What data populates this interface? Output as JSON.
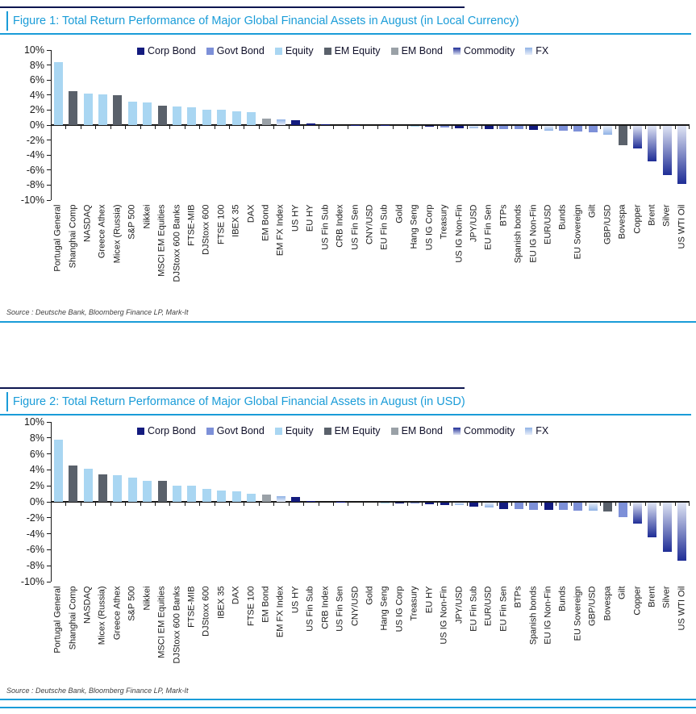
{
  "palette": {
    "corp_bond": {
      "label": "Corp Bond",
      "type": "solid",
      "color": "#131b7e"
    },
    "govt_bond": {
      "label": "Govt Bond",
      "type": "solid",
      "color": "#7d90d8"
    },
    "equity": {
      "label": "Equity",
      "type": "solid",
      "color": "#a9d6f2"
    },
    "em_equity": {
      "label": "EM Equity",
      "type": "solid",
      "color": "#5a616b"
    },
    "em_bond": {
      "label": "EM Bond",
      "type": "solid",
      "color": "#9aa1a7"
    },
    "commodity": {
      "label": "Commodity",
      "type": "gradient",
      "from": "#dfe4f4",
      "to": "#1f2d96"
    },
    "fx": {
      "label": "FX",
      "type": "gradient",
      "from": "#e8eef9",
      "to": "#8fb2e5"
    }
  },
  "chart_data": [
    {
      "type": "bar",
      "title": "Figure 1: Total Return Performance of Major Global Financial Assets in August (in Local Currency)",
      "source": "Source : Deutsche Bank, Bloomberg Finance LP, Mark-It",
      "xlabel": "",
      "ylabel": "",
      "ylim": [
        -10,
        10
      ],
      "yticks": [
        10,
        8,
        6,
        4,
        2,
        0,
        -2,
        -4,
        -6,
        -8,
        -10
      ],
      "ytick_format": "percent",
      "grid": false,
      "legend_position": "top",
      "legend": [
        "corp_bond",
        "govt_bond",
        "equity",
        "em_equity",
        "em_bond",
        "commodity",
        "fx"
      ],
      "bars": [
        {
          "label": "Portugal General",
          "value": 8.4,
          "series": "equity"
        },
        {
          "label": "Shanghai Comp",
          "value": 4.5,
          "series": "em_equity"
        },
        {
          "label": "NASDAQ",
          "value": 4.15,
          "series": "equity"
        },
        {
          "label": "Greece Athex",
          "value": 4.05,
          "series": "equity"
        },
        {
          "label": "Micex (Russia)",
          "value": 3.95,
          "series": "em_equity"
        },
        {
          "label": "S&P 500",
          "value": 3.1,
          "series": "equity"
        },
        {
          "label": "Nikkei",
          "value": 3.05,
          "series": "equity"
        },
        {
          "label": "MSCI EM Equities",
          "value": 2.6,
          "series": "em_equity"
        },
        {
          "label": "DJStoxx 600 Banks",
          "value": 2.45,
          "series": "equity"
        },
        {
          "label": "FTSE-MIB",
          "value": 2.4,
          "series": "equity"
        },
        {
          "label": "DJStoxx 600",
          "value": 2.05,
          "series": "equity"
        },
        {
          "label": "FTSE 100",
          "value": 2.0,
          "series": "equity"
        },
        {
          "label": "IBEX 35",
          "value": 1.85,
          "series": "equity"
        },
        {
          "label": "DAX",
          "value": 1.75,
          "series": "equity"
        },
        {
          "label": "EM Bond",
          "value": 0.9,
          "series": "em_bond"
        },
        {
          "label": "EM FX Index",
          "value": 0.7,
          "series": "fx"
        },
        {
          "label": "US HY",
          "value": 0.65,
          "series": "corp_bond"
        },
        {
          "label": "EU HY",
          "value": 0.25,
          "series": "corp_bond"
        },
        {
          "label": "US Fin Sub",
          "value": 0.1,
          "series": "corp_bond"
        },
        {
          "label": "CRB Index",
          "value": 0.05,
          "series": "commodity"
        },
        {
          "label": "US Fin Sen",
          "value": 0.05,
          "series": "corp_bond"
        },
        {
          "label": "CNY/USD",
          "value": 0.03,
          "series": "fx"
        },
        {
          "label": "EU Fin Sub",
          "value": 0.03,
          "series": "corp_bond"
        },
        {
          "label": "Gold",
          "value": 0.02,
          "series": "commodity"
        },
        {
          "label": "Hang Seng",
          "value": -0.05,
          "series": "equity"
        },
        {
          "label": "US IG Corp",
          "value": -0.1,
          "series": "corp_bond"
        },
        {
          "label": "Treasury",
          "value": -0.2,
          "series": "govt_bond"
        },
        {
          "label": "US IG Non-Fin",
          "value": -0.28,
          "series": "corp_bond"
        },
        {
          "label": "JPY/USD",
          "value": -0.33,
          "series": "fx"
        },
        {
          "label": "EU Fin Sen",
          "value": -0.38,
          "series": "corp_bond"
        },
        {
          "label": "BTPs",
          "value": -0.43,
          "series": "govt_bond"
        },
        {
          "label": "Spanish bonds",
          "value": -0.47,
          "series": "govt_bond"
        },
        {
          "label": "EU IG Non-Fin",
          "value": -0.55,
          "series": "corp_bond"
        },
        {
          "label": "EUR/USD",
          "value": -0.62,
          "series": "fx"
        },
        {
          "label": "Bunds",
          "value": -0.65,
          "series": "govt_bond"
        },
        {
          "label": "EU Sovereign",
          "value": -0.7,
          "series": "govt_bond"
        },
        {
          "label": "Gilt",
          "value": -0.85,
          "series": "govt_bond"
        },
        {
          "label": "GBP/USD",
          "value": -1.2,
          "series": "fx"
        },
        {
          "label": "Bovespa",
          "value": -2.6,
          "series": "em_equity"
        },
        {
          "label": "Copper",
          "value": -3.0,
          "series": "commodity"
        },
        {
          "label": "Brent",
          "value": -4.7,
          "series": "commodity"
        },
        {
          "label": "Silver",
          "value": -6.6,
          "series": "commodity"
        },
        {
          "label": "US WTI Oil",
          "value": -7.7,
          "series": "commodity"
        }
      ]
    },
    {
      "type": "bar",
      "title": "Figure 2: Total Return Performance of Major Global Financial Assets in August (in USD)",
      "source": "Source : Deutsche Bank, Bloomberg Finance LP, Mark-It",
      "xlabel": "",
      "ylabel": "",
      "ylim": [
        -10,
        10
      ],
      "yticks": [
        10,
        8,
        6,
        4,
        2,
        0,
        -2,
        -4,
        -6,
        -8,
        -10
      ],
      "ytick_format": "percent",
      "grid": false,
      "legend_position": "top",
      "legend": [
        "corp_bond",
        "govt_bond",
        "equity",
        "em_equity",
        "em_bond",
        "commodity",
        "fx"
      ],
      "bars": [
        {
          "label": "Portugal General",
          "value": 7.8,
          "series": "equity"
        },
        {
          "label": "Shanghai Comp",
          "value": 4.5,
          "series": "em_equity"
        },
        {
          "label": "NASDAQ",
          "value": 4.1,
          "series": "equity"
        },
        {
          "label": "Micex (Russia)",
          "value": 3.45,
          "series": "em_equity"
        },
        {
          "label": "Greece Athex",
          "value": 3.35,
          "series": "equity"
        },
        {
          "label": "S&P 500",
          "value": 3.0,
          "series": "equity"
        },
        {
          "label": "Nikkei",
          "value": 2.65,
          "series": "equity"
        },
        {
          "label": "MSCI EM Equities",
          "value": 2.6,
          "series": "em_equity"
        },
        {
          "label": "DJStoxx 600 Banks",
          "value": 2.05,
          "series": "equity"
        },
        {
          "label": "FTSE-MIB",
          "value": 2.0,
          "series": "equity"
        },
        {
          "label": "DJStoxx 600",
          "value": 1.65,
          "series": "equity"
        },
        {
          "label": "IBEX 35",
          "value": 1.45,
          "series": "equity"
        },
        {
          "label": "DAX",
          "value": 1.35,
          "series": "equity"
        },
        {
          "label": "FTSE 100",
          "value": 1.0,
          "series": "equity"
        },
        {
          "label": "EM Bond",
          "value": 0.9,
          "series": "em_bond"
        },
        {
          "label": "EM FX Index",
          "value": 0.75,
          "series": "fx"
        },
        {
          "label": "US HY",
          "value": 0.6,
          "series": "corp_bond"
        },
        {
          "label": "US Fin Sub",
          "value": 0.1,
          "series": "corp_bond"
        },
        {
          "label": "CRB Index",
          "value": 0.05,
          "series": "commodity"
        },
        {
          "label": "US Fin Sen",
          "value": 0.05,
          "series": "corp_bond"
        },
        {
          "label": "CNY/USD",
          "value": 0.03,
          "series": "fx"
        },
        {
          "label": "Gold",
          "value": 0.02,
          "series": "commodity"
        },
        {
          "label": "Hang Seng",
          "value": -0.05,
          "series": "equity"
        },
        {
          "label": "US IG Corp",
          "value": -0.1,
          "series": "corp_bond"
        },
        {
          "label": "Treasury",
          "value": -0.15,
          "series": "govt_bond"
        },
        {
          "label": "EU HY",
          "value": -0.2,
          "series": "corp_bond"
        },
        {
          "label": "US IG Non-Fin",
          "value": -0.27,
          "series": "corp_bond"
        },
        {
          "label": "JPY/USD",
          "value": -0.33,
          "series": "fx"
        },
        {
          "label": "EU Fin Sub",
          "value": -0.55,
          "series": "corp_bond"
        },
        {
          "label": "EUR/USD",
          "value": -0.57,
          "series": "fx"
        },
        {
          "label": "EU Fin Sen",
          "value": -0.77,
          "series": "corp_bond"
        },
        {
          "label": "BTPs",
          "value": -0.85,
          "series": "govt_bond"
        },
        {
          "label": "Spanish bonds",
          "value": -0.87,
          "series": "govt_bond"
        },
        {
          "label": "EU IG Non-Fin",
          "value": -0.95,
          "series": "corp_bond"
        },
        {
          "label": "Bunds",
          "value": -0.95,
          "series": "govt_bond"
        },
        {
          "label": "EU Sovereign",
          "value": -1.0,
          "series": "govt_bond"
        },
        {
          "label": "GBP/USD",
          "value": -1.0,
          "series": "fx"
        },
        {
          "label": "Bovespa",
          "value": -1.15,
          "series": "em_equity"
        },
        {
          "label": "Gilt",
          "value": -1.8,
          "series": "govt_bond"
        },
        {
          "label": "Copper",
          "value": -2.6,
          "series": "commodity"
        },
        {
          "label": "Brent",
          "value": -4.3,
          "series": "commodity"
        },
        {
          "label": "Silver",
          "value": -6.2,
          "series": "commodity"
        },
        {
          "label": "US WTI Oil",
          "value": -7.3,
          "series": "commodity"
        }
      ]
    }
  ]
}
